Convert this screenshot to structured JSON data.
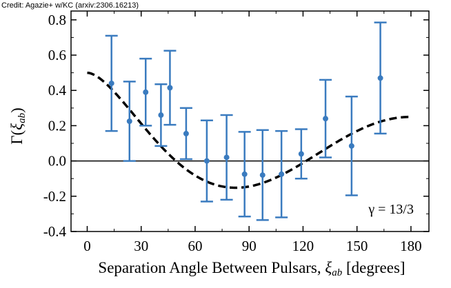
{
  "credit": "Credit: Agazie+ w/KC (arxiv:2306.16213)",
  "chart_data": {
    "type": "scatter",
    "title": "",
    "xlabel": "Separation Angle Between Pulsars, ξ_ab [degrees]",
    "xlabel_parts": {
      "main": "Separation Angle Between Pulsars, ",
      "xi": "ξ",
      "sub": "ab",
      "tail": " [degrees]"
    },
    "ylabel": "Γ(ξ_ab)",
    "ylabel_parts": {
      "gamma": "Γ(",
      "xi": "ξ",
      "sub": "ab",
      "close": ")"
    },
    "xlim": [
      -9,
      190
    ],
    "ylim": [
      -0.4,
      0.85
    ],
    "xticks": [
      0,
      30,
      60,
      90,
      120,
      150,
      180
    ],
    "xtick_labels": [
      "0",
      "30",
      "60",
      "90",
      "120",
      "150",
      "180"
    ],
    "yticks": [
      -0.4,
      -0.2,
      0.0,
      0.2,
      0.4,
      0.6,
      0.8
    ],
    "ytick_labels": [
      "-0.4",
      "-0.2",
      "0.0",
      "0.2",
      "0.4",
      "0.6",
      "0.8"
    ],
    "grid": false,
    "annotation": "γ = 13/3",
    "colors": {
      "points": "#3a7bbf",
      "curve": "#000000",
      "zero_line": "#000000"
    },
    "series": [
      {
        "type": "errorbar",
        "x": [
          13.5,
          23.5,
          32.5,
          41,
          46,
          55,
          66.5,
          77.5,
          87.5,
          97.5,
          108,
          119,
          132.5,
          147,
          163
        ],
        "y": [
          0.44,
          0.225,
          0.39,
          0.26,
          0.415,
          0.155,
          0.0,
          0.02,
          -0.075,
          -0.08,
          -0.075,
          0.04,
          0.24,
          0.085,
          0.47
        ],
        "yerr": [
          0.27,
          0.225,
          0.19,
          0.175,
          0.21,
          0.145,
          0.23,
          0.24,
          0.24,
          0.255,
          0.245,
          0.14,
          0.22,
          0.28,
          0.315
        ]
      },
      {
        "type": "line",
        "style": "dashed",
        "curve": "hellings-downs",
        "x_range": [
          0,
          180
        ]
      }
    ]
  }
}
